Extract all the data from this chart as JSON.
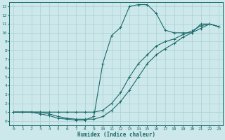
{
  "xlabel": "Humidex (Indice chaleur)",
  "xlim": [
    -0.5,
    23.5
  ],
  "ylim": [
    -0.5,
    13.5
  ],
  "xticks": [
    0,
    1,
    2,
    3,
    4,
    5,
    6,
    7,
    8,
    9,
    10,
    11,
    12,
    13,
    14,
    15,
    16,
    17,
    18,
    19,
    20,
    21,
    22,
    23
  ],
  "yticks": [
    0,
    1,
    2,
    3,
    4,
    5,
    6,
    7,
    8,
    9,
    10,
    11,
    12,
    13
  ],
  "bg_color": "#cce8ea",
  "line_color": "#1a6b6b",
  "grid_color": "#aacfd4",
  "line1_x": [
    0,
    1,
    2,
    3,
    4,
    5,
    6,
    7,
    8,
    9,
    10,
    11,
    12,
    13,
    14,
    15,
    16,
    17,
    18,
    19,
    20,
    21,
    22,
    23
  ],
  "line1_y": [
    1,
    1,
    1,
    1,
    0.8,
    0.5,
    0.3,
    0.2,
    0.2,
    0.2,
    0.5,
    1.2,
    2.2,
    3.5,
    5.0,
    6.5,
    7.5,
    8.2,
    8.8,
    9.5,
    10.0,
    10.5,
    11.0,
    10.7
  ],
  "line2_x": [
    0,
    1,
    2,
    3,
    4,
    5,
    6,
    7,
    8,
    9,
    10,
    11,
    12,
    13,
    14,
    15,
    16,
    17,
    18,
    19,
    20,
    21,
    22,
    23
  ],
  "line2_y": [
    1,
    1,
    1,
    1,
    1,
    1,
    1,
    1,
    1,
    1,
    1.2,
    2.0,
    3.2,
    5.0,
    6.5,
    7.5,
    8.5,
    9.0,
    9.3,
    9.8,
    10.2,
    10.8,
    11.0,
    10.7
  ],
  "line3_x": [
    0,
    1,
    2,
    3,
    4,
    5,
    6,
    7,
    8,
    9,
    10,
    11,
    12,
    13,
    14,
    15,
    16,
    17,
    18,
    19,
    20,
    21,
    22,
    23
  ],
  "line3_y": [
    1,
    1,
    1,
    0.8,
    0.6,
    0.3,
    0.2,
    0.1,
    0.1,
    0.5,
    6.5,
    9.7,
    10.6,
    13.0,
    13.2,
    13.2,
    12.2,
    10.3,
    10.0,
    10.0,
    10.0,
    11.0,
    11.0,
    10.7
  ]
}
